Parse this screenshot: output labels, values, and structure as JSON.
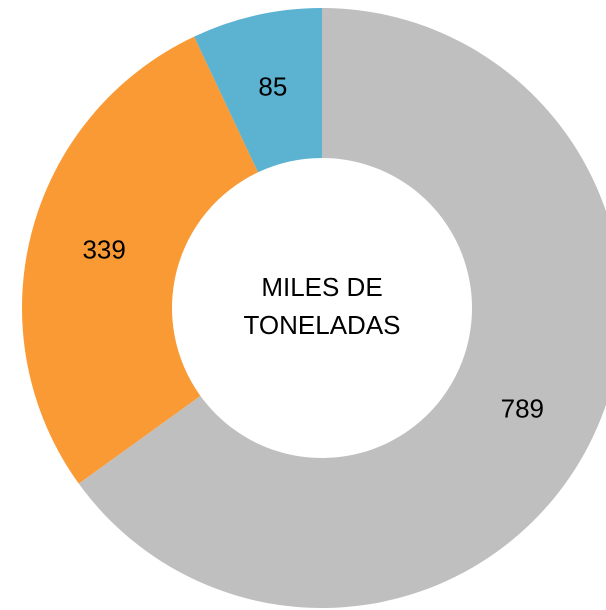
{
  "chart_data": {
    "type": "doughnut",
    "center_label": "MILES DE TONELADAS",
    "values": [
      789,
      339,
      85
    ],
    "colors": [
      "#bfbfbf",
      "#f99a35",
      "#5bb2d1"
    ]
  }
}
